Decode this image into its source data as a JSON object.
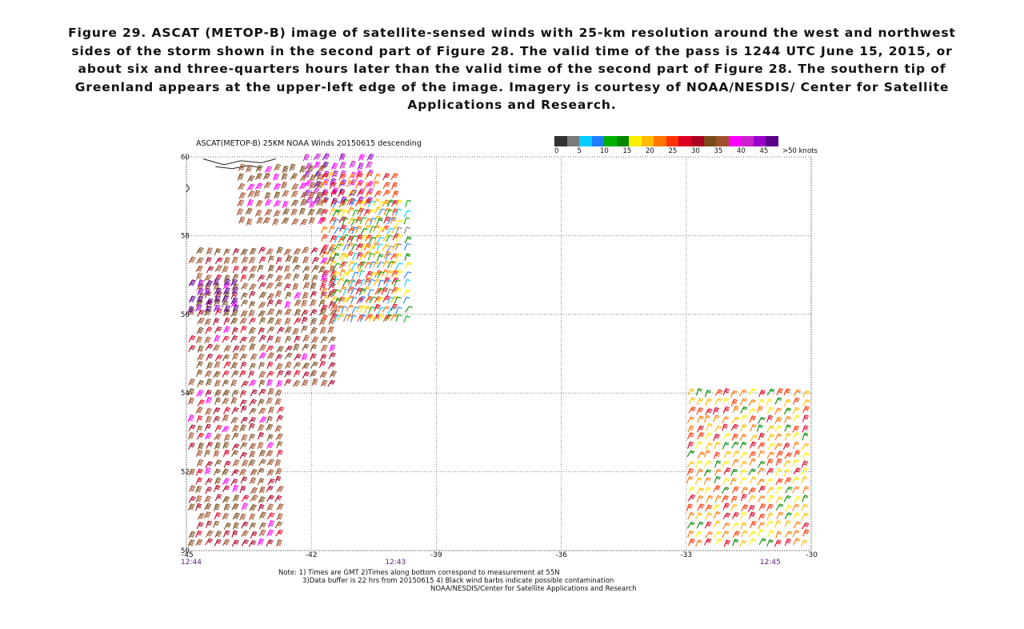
{
  "caption": "Figure 29.  ASCAT (METOP-B) image of satellite-sensed winds with 25-km resolution around the west and northwest sides of the storm shown in the second part of Figure 28.  The valid time of the pass is 1244 UTC June 15, 2015, or about six and three-quarters hours later than the valid time of the second part of Figure 28.  The southern tip of Greenland appears at the upper-left edge of the image.  Imagery is courtesy of NOAA/NESDIS/ Center for Satellite Applications and Research.",
  "chart_data": {
    "type": "scatter",
    "title": "ASCAT(METOP-B) 25KM NOAA Winds 20150615 descending",
    "xlim": [
      -45,
      -30
    ],
    "ylim": [
      50,
      60
    ],
    "x_ticks": [
      "-45",
      "-42",
      "-39",
      "-36",
      "-33",
      "-30"
    ],
    "y_ticks": [
      "60",
      "58",
      "56",
      "54",
      "52",
      "50"
    ],
    "grid": true,
    "colorbar": {
      "labels": [
        "0",
        "5",
        "10",
        "15",
        "20",
        "25",
        "30",
        "35",
        "40",
        "45",
        ">50 knots"
      ],
      "colors": [
        "#333333",
        "#7a7a7a",
        "#00ccff",
        "#1f7fff",
        "#00b000",
        "#008800",
        "#ffee00",
        "#ffbb00",
        "#ff7700",
        "#ff3300",
        "#dd0022",
        "#aa0022",
        "#7a4a1a",
        "#a0522d",
        "#ff00ff",
        "#cc22cc",
        "#9900cc",
        "#5a0088"
      ]
    },
    "pass_times": [
      {
        "label": "12:44",
        "lon": -45
      },
      {
        "label": "12:43",
        "lon": -40
      },
      {
        "label": "12:45",
        "lon": -31
      }
    ],
    "wind_regions": [
      {
        "name": "northwest swath, purple",
        "lon": [
          -42.2,
          -40.6
        ],
        "lat": [
          58.6,
          60.0
        ],
        "speed_kt": [
          40,
          50
        ]
      },
      {
        "name": "northwest swath, brown",
        "lon": [
          -43.8,
          -41.8
        ],
        "lat": [
          58.2,
          59.7
        ],
        "speed_kt": [
          35,
          40
        ]
      },
      {
        "name": "swath edge, yellow",
        "lon": [
          -41.8,
          -40.0
        ],
        "lat": [
          55.8,
          59.5
        ],
        "speed_kt": [
          20,
          30
        ]
      },
      {
        "name": "swath edge, green/blue",
        "lon": [
          -41.5,
          -39.6
        ],
        "lat": [
          55.6,
          58.8
        ],
        "speed_kt": [
          5,
          20
        ]
      },
      {
        "name": "western swath, brown/orange",
        "lon": [
          -45.0,
          -41.5
        ],
        "lat": [
          54.0,
          57.6
        ],
        "speed_kt": [
          30,
          40
        ]
      },
      {
        "name": "western core, magenta",
        "lon": [
          -45.0,
          -43.8
        ],
        "lat": [
          55.8,
          56.8
        ],
        "speed_kt": [
          45,
          50
        ]
      },
      {
        "name": "southwest swath, brown/red",
        "lon": [
          -45.0,
          -42.8
        ],
        "lat": [
          50.0,
          54.0
        ],
        "speed_kt": [
          30,
          40
        ]
      },
      {
        "name": "southeast swath, yellow/green",
        "lon": [
          -33.0,
          -30.0
        ],
        "lat": [
          50.0,
          54.0
        ],
        "speed_kt": [
          15,
          30
        ]
      }
    ]
  },
  "note": {
    "line1": "Note: 1) Times are GMT 2)Times along bottom correspond to measurement at 55N",
    "line2": "3)Data buffer is 22 hrs from 20150615 4) Black wind barbs indicate possible contamination",
    "line3": "NOAA/NESDIS/Center for Satellite Applications and Research"
  }
}
